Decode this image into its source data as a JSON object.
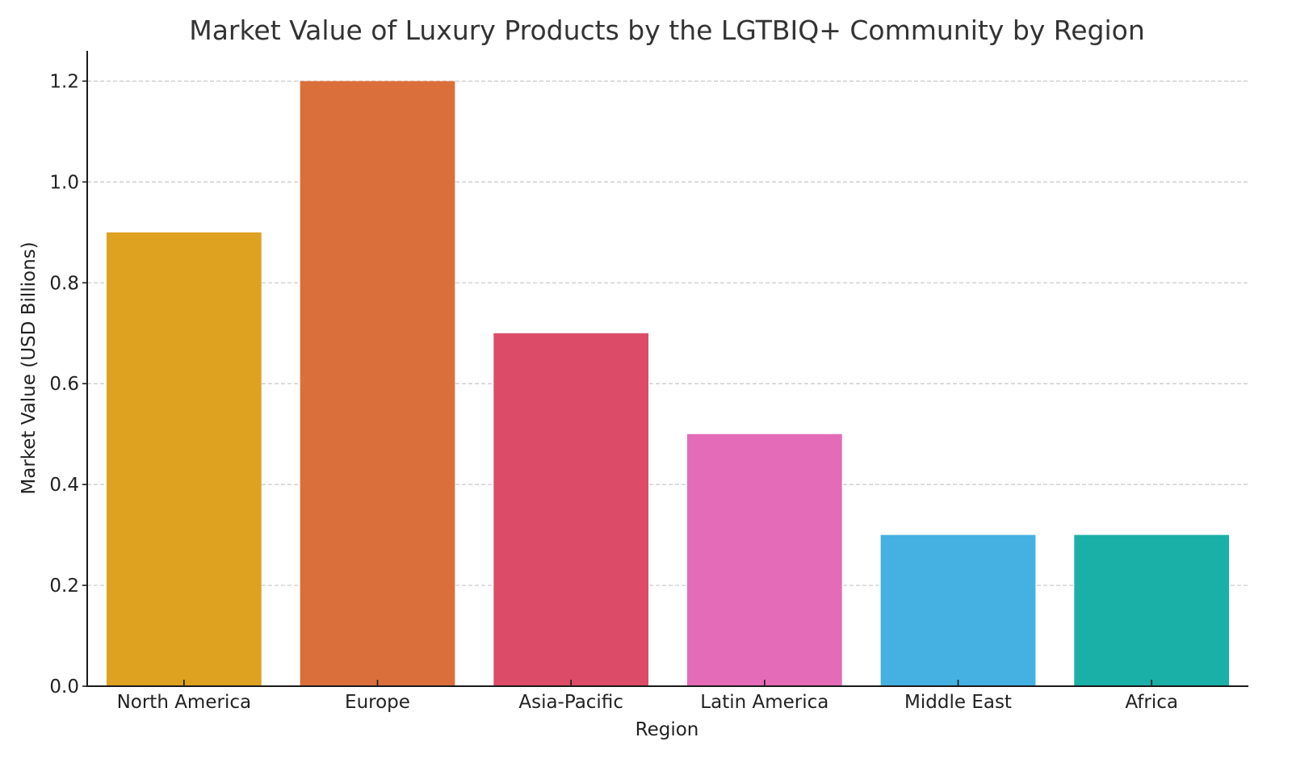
{
  "chart_data": {
    "type": "bar",
    "title": "Market Value of Luxury Products by the LGTBIQ+ Community by Region",
    "xlabel": "Region",
    "ylabel": "Market Value (USD Billions)",
    "categories": [
      "North America",
      "Europe",
      "Asia-Pacific",
      "Latin America",
      "Middle East",
      "Africa"
    ],
    "values": [
      0.9,
      1.2,
      0.7,
      0.5,
      0.3,
      0.3
    ],
    "colors": [
      "#DEA220",
      "#DB6F3B",
      "#DC4B67",
      "#E46BB7",
      "#44B1E2",
      "#1AB0A7"
    ],
    "ylim": [
      0,
      1.26
    ],
    "yticks": [
      0.0,
      0.2,
      0.4,
      0.6,
      0.8,
      1.0,
      1.2
    ],
    "ytick_labels": [
      "0.0",
      "0.2",
      "0.4",
      "0.6",
      "0.8",
      "1.0",
      "1.2"
    ],
    "grid": "y-dashed",
    "legend": "none"
  }
}
